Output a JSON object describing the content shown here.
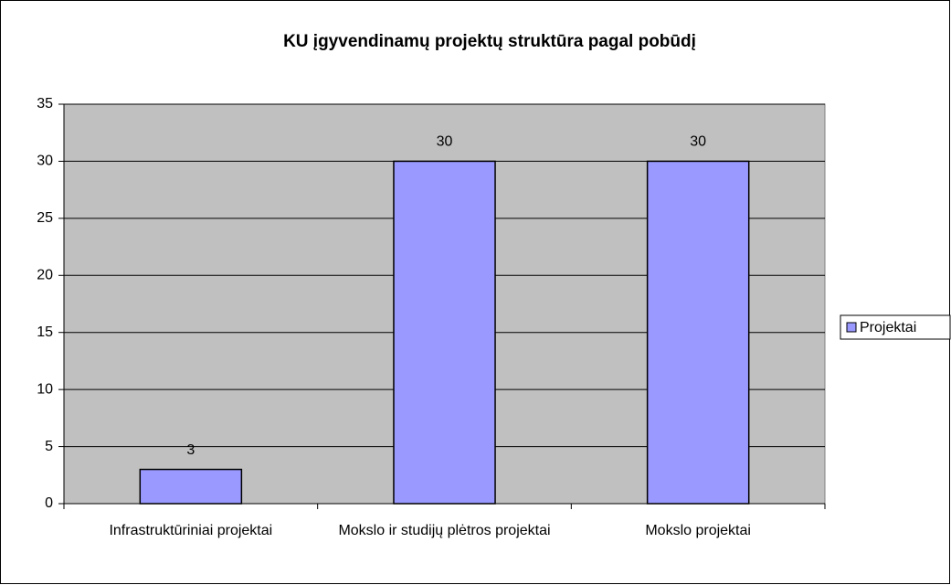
{
  "chart_data": {
    "type": "bar",
    "title": "KU įgyvendinamų projektų struktūra pagal pobūdį",
    "categories": [
      "Infrastruktūriniai projektai",
      "Mokslo ir studijų plėtros projektai",
      "Mokslo projektai"
    ],
    "series": [
      {
        "name": "Projektai",
        "color": "#9999ff",
        "values": [
          3,
          30,
          30
        ]
      }
    ],
    "ylim": [
      0,
      35
    ],
    "yticks": [
      0,
      5,
      10,
      15,
      20,
      25,
      30,
      35
    ],
    "grid": true,
    "legend": "right",
    "plot_background": "#c0c0c0"
  }
}
